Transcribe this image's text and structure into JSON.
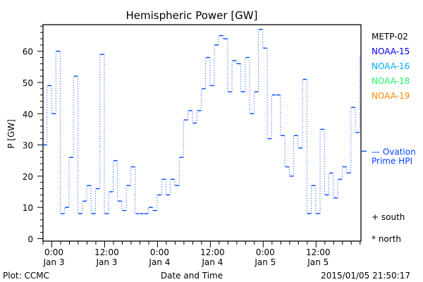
{
  "chart_data": {
    "type": "line",
    "title": "Hemispheric Power [GW]",
    "xlabel": "Date and Time",
    "ylabel": "P [GW]",
    "ylim": [
      -0.8,
      68.5
    ],
    "xlim_hours": [
      -2,
      70.2
    ],
    "x_start_hour": -2,
    "x_step_hours": 1,
    "yticks": [
      0,
      10,
      20,
      30,
      40,
      50,
      60
    ],
    "xticks": [
      {
        "hour": 0,
        "time": "0:00",
        "date": "Jan 3"
      },
      {
        "hour": 12,
        "time": "12:00",
        "date": "Jan 3"
      },
      {
        "hour": 24,
        "time": "0:00",
        "date": "Jan 4"
      },
      {
        "hour": 36,
        "time": "12:00",
        "date": "Jan 4"
      },
      {
        "hour": 48,
        "time": "0:00",
        "date": "Jan 5"
      },
      {
        "hour": 60,
        "time": "12:00",
        "date": "Jan 5"
      }
    ],
    "series": [
      {
        "name": "NOAA-15",
        "color": "#0044ff",
        "values": [
          30,
          49,
          40,
          60,
          8,
          10,
          26,
          52,
          8,
          12,
          17,
          8,
          16,
          59,
          8,
          15,
          25,
          12,
          9,
          17,
          23,
          8,
          8,
          8,
          10,
          9,
          14,
          19,
          14,
          19,
          17,
          26,
          38,
          41,
          37,
          41,
          48,
          58,
          49,
          62,
          65,
          64,
          47,
          57,
          56,
          47,
          58,
          40,
          47,
          67,
          61,
          32,
          46,
          46,
          33,
          23,
          20,
          33,
          29,
          51,
          8,
          17,
          8,
          35,
          14,
          21,
          13,
          19,
          23,
          21,
          42,
          34,
          58
        ]
      }
    ],
    "ovation": {
      "label_line1": "— Ovation",
      "label_line2": "Prime HPI",
      "value": 28,
      "color": "#0044ff"
    },
    "legend": [
      {
        "name": "METP-02",
        "color": "#000000"
      },
      {
        "name": "NOAA-15",
        "color": "#0000ee"
      },
      {
        "name": "NOAA-16",
        "color": "#00aaff"
      },
      {
        "name": "NOAA-18",
        "color": "#22ee66"
      },
      {
        "name": "NOAA-19",
        "color": "#ff8800"
      }
    ],
    "symbols": [
      {
        "label": "+ south"
      },
      {
        "label": "* north"
      }
    ],
    "legend_position": "right",
    "footer_left": "Plot: CCMC",
    "footer_right": "2015/01/05 21:50:17"
  }
}
